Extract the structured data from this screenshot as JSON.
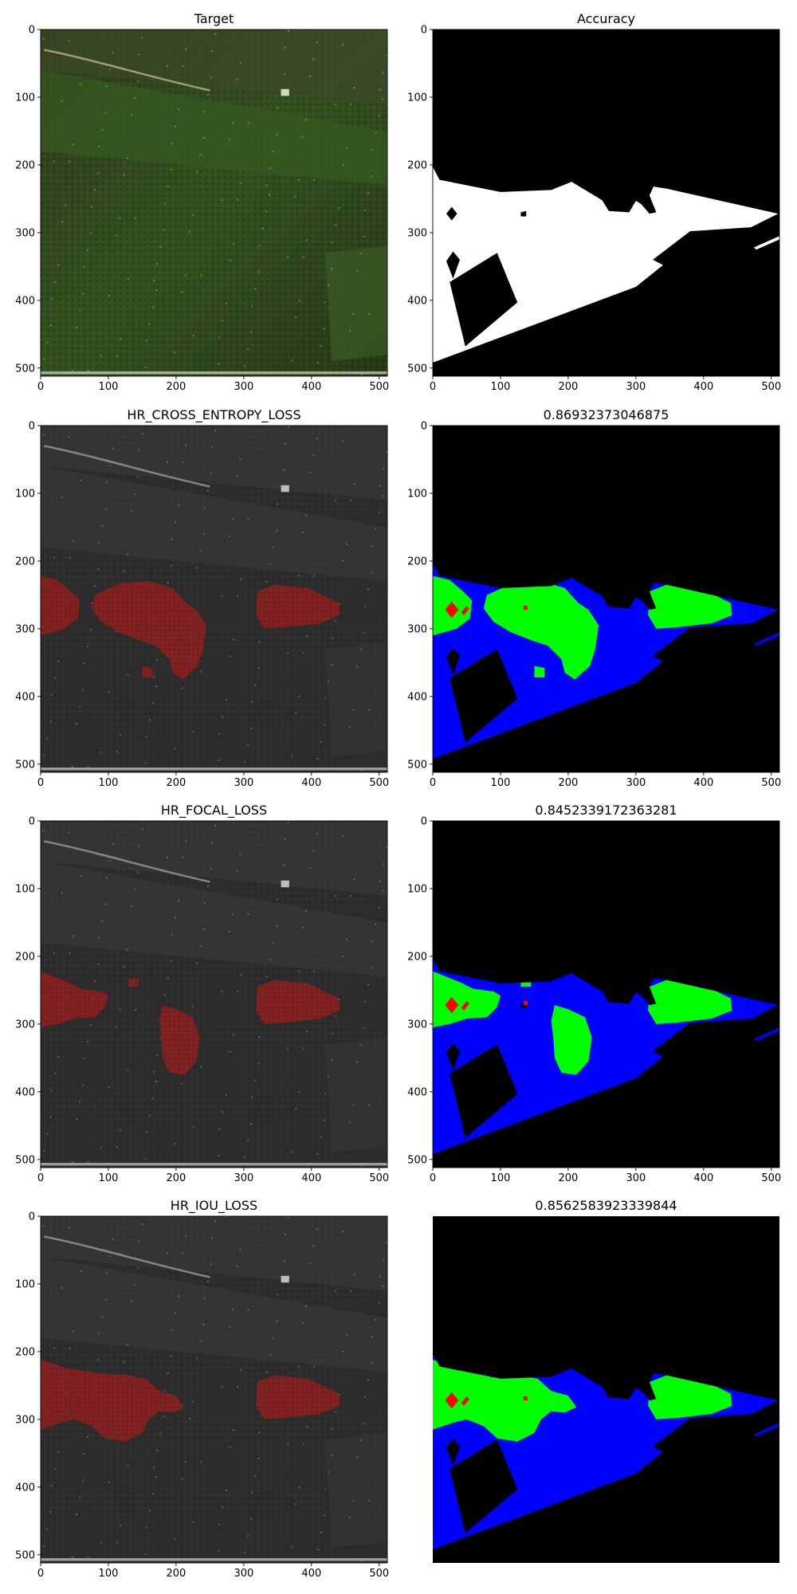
{
  "chart_data": [
    {
      "type": "image",
      "title": "Target",
      "xlim": [
        0,
        512
      ],
      "ylim": [
        512,
        0
      ],
      "xticks": [
        0,
        100,
        200,
        300,
        400,
        500
      ],
      "yticks": [
        0,
        100,
        200,
        300,
        400,
        500
      ],
      "axes_visible": true,
      "content": "satellite"
    },
    {
      "type": "image",
      "title": "Accuracy",
      "xlim": [
        0,
        512
      ],
      "ylim": [
        512,
        0
      ],
      "xticks": [
        0,
        100,
        200,
        300,
        400,
        500
      ],
      "yticks": [
        0,
        100,
        200,
        300,
        400,
        500
      ],
      "axes_visible": true,
      "content": "ground_truth_mask",
      "colors": {
        "background": "#000000",
        "mask": "#ffffff"
      }
    },
    {
      "type": "image",
      "title": "HR_CROSS_ENTROPY_LOSS",
      "xlim": [
        0,
        512
      ],
      "ylim": [
        512,
        0
      ],
      "xticks": [
        0,
        100,
        200,
        300,
        400,
        500
      ],
      "yticks": [
        0,
        100,
        200,
        300,
        400,
        500
      ],
      "axes_visible": true,
      "content": "prediction_overlay",
      "variant": "ce",
      "colors": {
        "overlay": "#8b1e1e"
      }
    },
    {
      "type": "image",
      "title": "0.86932373046875",
      "xlim": [
        0,
        512
      ],
      "ylim": [
        512,
        0
      ],
      "xticks": [
        0,
        100,
        200,
        300,
        400,
        500
      ],
      "yticks": [
        0,
        100,
        200,
        300,
        400,
        500
      ],
      "axes_visible": true,
      "content": "comparison_mask",
      "variant": "ce",
      "colors": {
        "background": "#000000",
        "ground_truth": "#0000ff",
        "match": "#00ff00",
        "error": "#ff0000"
      }
    },
    {
      "type": "image",
      "title": "HR_FOCAL_LOSS",
      "xlim": [
        0,
        512
      ],
      "ylim": [
        512,
        0
      ],
      "xticks": [
        0,
        100,
        200,
        300,
        400,
        500
      ],
      "yticks": [
        0,
        100,
        200,
        300,
        400,
        500
      ],
      "axes_visible": true,
      "content": "prediction_overlay",
      "variant": "focal",
      "colors": {
        "overlay": "#8b1e1e"
      }
    },
    {
      "type": "image",
      "title": "0.8452339172363281",
      "xlim": [
        0,
        512
      ],
      "ylim": [
        512,
        0
      ],
      "xticks": [
        0,
        100,
        200,
        300,
        400,
        500
      ],
      "yticks": [
        0,
        100,
        200,
        300,
        400,
        500
      ],
      "axes_visible": true,
      "content": "comparison_mask",
      "variant": "focal",
      "colors": {
        "background": "#000000",
        "ground_truth": "#0000ff",
        "match": "#00ff00",
        "error": "#ff0000"
      }
    },
    {
      "type": "image",
      "title": "HR_IOU_LOSS",
      "xlim": [
        0,
        512
      ],
      "ylim": [
        512,
        0
      ],
      "xticks": [
        0,
        100,
        200,
        300,
        400,
        500
      ],
      "yticks": [
        0,
        100,
        200,
        300,
        400,
        500
      ],
      "axes_visible": true,
      "content": "prediction_overlay",
      "variant": "iou",
      "colors": {
        "overlay": "#8b1e1e"
      }
    },
    {
      "type": "image",
      "title": "0.8562583923339844",
      "xlim": [
        0,
        512
      ],
      "ylim": [
        512,
        0
      ],
      "xticks": [],
      "yticks": [],
      "axes_visible": false,
      "content": "comparison_mask",
      "variant": "iou",
      "colors": {
        "background": "#000000",
        "ground_truth": "#0000ff",
        "match": "#00ff00",
        "error": "#ff0000"
      }
    }
  ]
}
